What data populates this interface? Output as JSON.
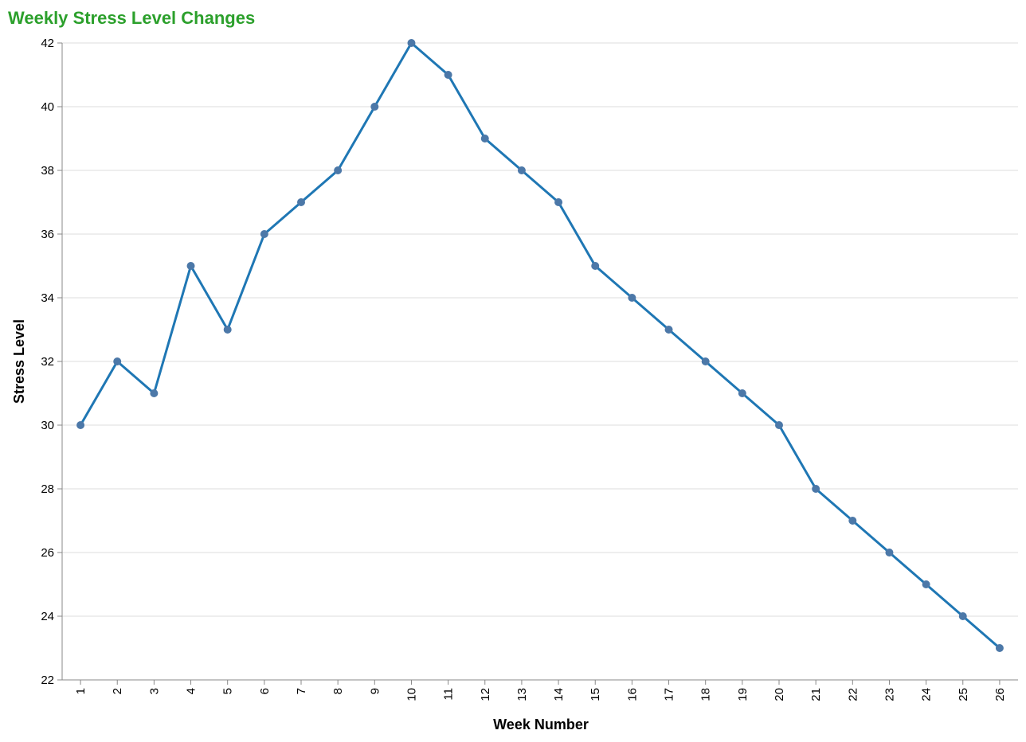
{
  "chart_data": {
    "type": "line",
    "title": "Weekly Stress Level Changes",
    "xlabel": "Week Number",
    "ylabel": "Stress Level",
    "x": [
      1,
      2,
      3,
      4,
      5,
      6,
      7,
      8,
      9,
      10,
      11,
      12,
      13,
      14,
      15,
      16,
      17,
      18,
      19,
      20,
      21,
      22,
      23,
      24,
      25,
      26
    ],
    "series": [
      {
        "values": [
          30,
          32,
          31,
          35,
          33,
          36,
          37,
          38,
          40,
          42,
          41,
          39,
          38,
          37,
          35,
          34,
          33,
          32,
          31,
          30,
          28,
          27,
          26,
          25,
          24,
          23
        ]
      }
    ],
    "ylim": [
      22,
      42
    ],
    "yticks": [
      22,
      24,
      26,
      28,
      30,
      32,
      34,
      36,
      38,
      40,
      42
    ],
    "grid": true,
    "colors": {
      "title": "#2ca02c",
      "line": "#1f77b4",
      "point": "#4c78a8",
      "grid": "#dddddd",
      "axis": "#888888"
    }
  }
}
